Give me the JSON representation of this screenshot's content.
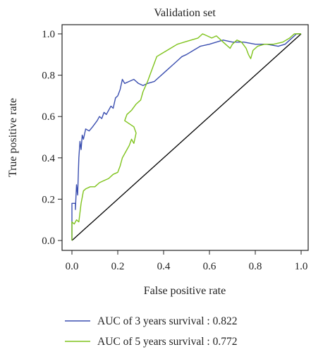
{
  "chart_data": {
    "type": "line",
    "title": "Validation set",
    "xlabel": "False positive rate",
    "ylabel": "True positive rate",
    "xlim": [
      0,
      1
    ],
    "ylim": [
      0,
      1
    ],
    "x_ticks": [
      "0.0",
      "0.2",
      "0.4",
      "0.6",
      "0.8",
      "1.0"
    ],
    "y_ticks": [
      "0.0",
      "0.2",
      "0.4",
      "0.6",
      "0.8",
      "1.0"
    ],
    "grid": false,
    "legend_position": "bottom",
    "reference_line": {
      "from": [
        0,
        0
      ],
      "to": [
        1,
        1
      ],
      "color": "#000000"
    },
    "series": [
      {
        "name": "AUC of 3 years survival : 0.822",
        "color": "#3b4fb0",
        "points": [
          [
            0.0,
            0.0
          ],
          [
            0.0,
            0.18
          ],
          [
            0.015,
            0.18
          ],
          [
            0.015,
            0.15
          ],
          [
            0.02,
            0.27
          ],
          [
            0.025,
            0.22
          ],
          [
            0.03,
            0.4
          ],
          [
            0.035,
            0.48
          ],
          [
            0.04,
            0.44
          ],
          [
            0.045,
            0.51
          ],
          [
            0.05,
            0.49
          ],
          [
            0.06,
            0.54
          ],
          [
            0.075,
            0.53
          ],
          [
            0.09,
            0.55
          ],
          [
            0.11,
            0.58
          ],
          [
            0.12,
            0.6
          ],
          [
            0.13,
            0.59
          ],
          [
            0.14,
            0.62
          ],
          [
            0.15,
            0.61
          ],
          [
            0.16,
            0.63
          ],
          [
            0.17,
            0.65
          ],
          [
            0.18,
            0.64
          ],
          [
            0.19,
            0.69
          ],
          [
            0.2,
            0.7
          ],
          [
            0.21,
            0.73
          ],
          [
            0.22,
            0.78
          ],
          [
            0.23,
            0.76
          ],
          [
            0.25,
            0.77
          ],
          [
            0.27,
            0.78
          ],
          [
            0.29,
            0.76
          ],
          [
            0.31,
            0.75
          ],
          [
            0.33,
            0.76
          ],
          [
            0.36,
            0.77
          ],
          [
            0.38,
            0.79
          ],
          [
            0.4,
            0.81
          ],
          [
            0.42,
            0.83
          ],
          [
            0.44,
            0.85
          ],
          [
            0.46,
            0.87
          ],
          [
            0.48,
            0.89
          ],
          [
            0.5,
            0.9
          ],
          [
            0.53,
            0.92
          ],
          [
            0.56,
            0.94
          ],
          [
            0.6,
            0.95
          ],
          [
            0.63,
            0.96
          ],
          [
            0.66,
            0.97
          ],
          [
            0.7,
            0.96
          ],
          [
            0.75,
            0.96
          ],
          [
            0.8,
            0.95
          ],
          [
            0.85,
            0.95
          ],
          [
            0.9,
            0.94
          ],
          [
            0.93,
            0.95
          ],
          [
            0.95,
            0.97
          ],
          [
            0.97,
            0.99
          ],
          [
            0.98,
            1.0
          ],
          [
            1.0,
            1.0
          ]
        ]
      },
      {
        "name": "AUC of 5 years survival : 0.772",
        "color": "#7fc31c",
        "points": [
          [
            0.0,
            0.0
          ],
          [
            0.0,
            0.09
          ],
          [
            0.01,
            0.08
          ],
          [
            0.02,
            0.1
          ],
          [
            0.03,
            0.09
          ],
          [
            0.04,
            0.18
          ],
          [
            0.05,
            0.24
          ],
          [
            0.06,
            0.25
          ],
          [
            0.08,
            0.26
          ],
          [
            0.1,
            0.26
          ],
          [
            0.12,
            0.28
          ],
          [
            0.14,
            0.29
          ],
          [
            0.16,
            0.3
          ],
          [
            0.18,
            0.32
          ],
          [
            0.2,
            0.33
          ],
          [
            0.21,
            0.36
          ],
          [
            0.22,
            0.4
          ],
          [
            0.23,
            0.42
          ],
          [
            0.24,
            0.44
          ],
          [
            0.25,
            0.46
          ],
          [
            0.26,
            0.49
          ],
          [
            0.27,
            0.47
          ],
          [
            0.28,
            0.52
          ],
          [
            0.27,
            0.55
          ],
          [
            0.23,
            0.58
          ],
          [
            0.24,
            0.61
          ],
          [
            0.26,
            0.63
          ],
          [
            0.28,
            0.66
          ],
          [
            0.3,
            0.68
          ],
          [
            0.31,
            0.72
          ],
          [
            0.33,
            0.77
          ],
          [
            0.35,
            0.83
          ],
          [
            0.37,
            0.89
          ],
          [
            0.4,
            0.91
          ],
          [
            0.43,
            0.93
          ],
          [
            0.46,
            0.95
          ],
          [
            0.49,
            0.96
          ],
          [
            0.52,
            0.97
          ],
          [
            0.55,
            0.98
          ],
          [
            0.57,
            1.0
          ],
          [
            0.59,
            0.99
          ],
          [
            0.61,
            0.98
          ],
          [
            0.63,
            0.99
          ],
          [
            0.65,
            0.97
          ],
          [
            0.67,
            0.95
          ],
          [
            0.69,
            0.93
          ],
          [
            0.7,
            0.95
          ],
          [
            0.72,
            0.97
          ],
          [
            0.74,
            0.96
          ],
          [
            0.76,
            0.93
          ],
          [
            0.77,
            0.9
          ],
          [
            0.78,
            0.88
          ],
          [
            0.79,
            0.92
          ],
          [
            0.81,
            0.94
          ],
          [
            0.84,
            0.95
          ],
          [
            0.88,
            0.95
          ],
          [
            0.92,
            0.96
          ],
          [
            0.95,
            0.98
          ],
          [
            0.97,
            1.0
          ],
          [
            1.0,
            1.0
          ]
        ]
      }
    ]
  }
}
